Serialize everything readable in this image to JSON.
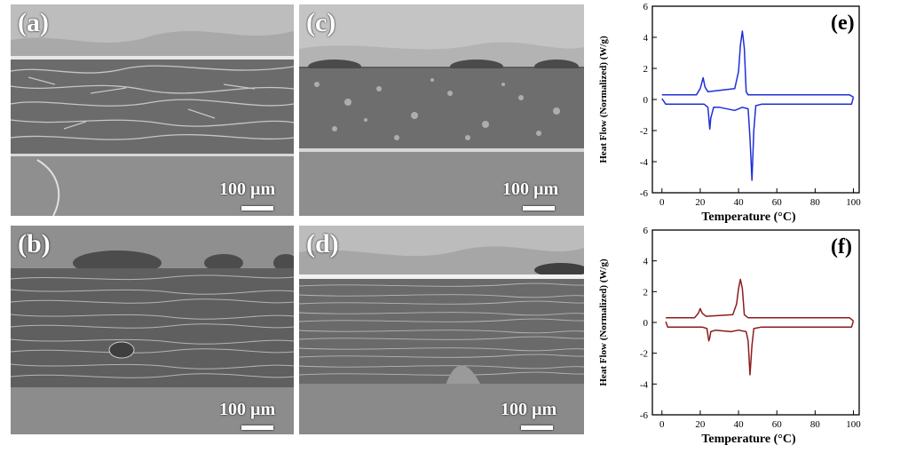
{
  "sem_panels": [
    {
      "label": "(a)",
      "scale": "100 µm"
    },
    {
      "label": "(c)",
      "scale": "100 µm"
    },
    {
      "label": "(b)",
      "scale": "100 µm"
    },
    {
      "label": "(d)",
      "scale": "100 µm"
    }
  ],
  "colors": {
    "e_curve": "#1f2fd6",
    "f_curve": "#8b1c1c"
  },
  "chart_data": [
    {
      "type": "line",
      "panel_label": "(e)",
      "xlabel": "Temperature (°C)",
      "ylabel": "Heat Flow (Normalized) (W/g)",
      "xlim": [
        -5,
        103
      ],
      "ylim": [
        -6,
        6
      ],
      "xticks": [
        "0",
        "20",
        "40",
        "60",
        "80",
        "100"
      ],
      "yticks": [
        "6",
        "4",
        "2",
        "0",
        "-2",
        "-4",
        "-6"
      ],
      "series": [
        {
          "values": [
            [
              0,
              0.3
            ],
            [
              18,
              0.3
            ],
            [
              20,
              0.7
            ],
            [
              21.5,
              1.4
            ],
            [
              22.5,
              0.8
            ],
            [
              24,
              0.5
            ],
            [
              38,
              0.7
            ],
            [
              40,
              1.8
            ],
            [
              41,
              3.5
            ],
            [
              42,
              4.4
            ],
            [
              43,
              3.3
            ],
            [
              44,
              0.5
            ],
            [
              45,
              0.3
            ],
            [
              98,
              0.3
            ],
            [
              100,
              0.15
            ]
          ]
        },
        {
          "values": [
            [
              100,
              0.15
            ],
            [
              99,
              -0.3
            ],
            [
              52,
              -0.3
            ],
            [
              49,
              -0.4
            ],
            [
              48,
              -2
            ],
            [
              47,
              -5.2
            ],
            [
              46,
              -2.5
            ],
            [
              45,
              -0.6
            ],
            [
              42,
              -0.5
            ],
            [
              38,
              -0.7
            ],
            [
              30,
              -0.5
            ],
            [
              27,
              -0.5
            ],
            [
              25.5,
              -1.2
            ],
            [
              25,
              -1.9
            ],
            [
              24,
              -0.5
            ],
            [
              22,
              -0.3
            ],
            [
              2,
              -0.3
            ],
            [
              0,
              0.05
            ]
          ]
        }
      ]
    },
    {
      "type": "line",
      "panel_label": "(f)",
      "xlabel": "Temperature (°C)",
      "ylabel": "Heat Flow (Normalized) (W/g)",
      "xlim": [
        -5,
        103
      ],
      "ylim": [
        -6,
        6
      ],
      "xticks": [
        "0",
        "20",
        "40",
        "60",
        "80",
        "100"
      ],
      "yticks": [
        "6",
        "4",
        "2",
        "0",
        "-2",
        "-4",
        "-6"
      ],
      "series": [
        {
          "values": [
            [
              2,
              0.3
            ],
            [
              17,
              0.3
            ],
            [
              19,
              0.6
            ],
            [
              20,
              0.9
            ],
            [
              21,
              0.6
            ],
            [
              23,
              0.4
            ],
            [
              37,
              0.5
            ],
            [
              39,
              1.2
            ],
            [
              40,
              2.2
            ],
            [
              41,
              2.8
            ],
            [
              42,
              2.2
            ],
            [
              43,
              0.5
            ],
            [
              45,
              0.3
            ],
            [
              98,
              0.3
            ],
            [
              100,
              0.1
            ]
          ]
        },
        {
          "values": [
            [
              100,
              0.1
            ],
            [
              99,
              -0.3
            ],
            [
              52,
              -0.3
            ],
            [
              48,
              -0.4
            ],
            [
              47,
              -1.5
            ],
            [
              46,
              -3.4
            ],
            [
              45,
              -1.2
            ],
            [
              44,
              -0.6
            ],
            [
              40,
              -0.5
            ],
            [
              36,
              -0.6
            ],
            [
              28,
              -0.5
            ],
            [
              25.5,
              -0.6
            ],
            [
              25,
              -1
            ],
            [
              24.5,
              -1.2
            ],
            [
              23.5,
              -0.4
            ],
            [
              21,
              -0.3
            ],
            [
              3,
              -0.3
            ],
            [
              2,
              0.05
            ]
          ]
        }
      ]
    }
  ]
}
